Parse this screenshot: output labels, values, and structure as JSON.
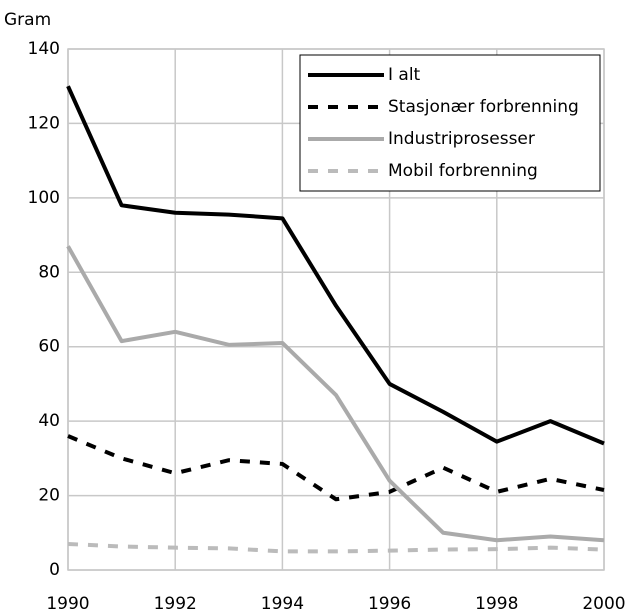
{
  "chart_data": {
    "type": "line",
    "ylabel": "Gram",
    "x": [
      1990,
      1991,
      1992,
      1993,
      1994,
      1995,
      1996,
      1997,
      1998,
      1999,
      2000
    ],
    "xlim": [
      1990,
      2000
    ],
    "xticks": [
      1990,
      1992,
      1994,
      1996,
      1998,
      2000
    ],
    "ylim": [
      0,
      140
    ],
    "yticks": [
      0,
      20,
      40,
      60,
      80,
      100,
      120,
      140
    ],
    "grid": true,
    "legend": "upper right",
    "series": [
      {
        "name": "I alt",
        "color": "#000000",
        "dashed": false,
        "values": [
          130,
          98,
          96,
          95.5,
          94.5,
          71,
          50,
          42.5,
          34.5,
          40,
          34
        ]
      },
      {
        "name": "Stasjonær forbrenning",
        "color": "#000000",
        "dashed": true,
        "values": [
          36,
          30,
          26,
          29.5,
          28.5,
          19,
          21,
          27.5,
          21,
          24.5,
          21.5
        ]
      },
      {
        "name": "Industriprosesser",
        "color": "#aaaaaa",
        "dashed": false,
        "values": [
          87,
          61.5,
          64,
          60.5,
          61,
          47,
          24,
          10,
          8,
          9,
          8
        ]
      },
      {
        "name": "Mobil forbrenning",
        "color": "#bbbbbb",
        "dashed": true,
        "values": [
          7,
          6.3,
          6,
          5.8,
          5,
          5,
          5.2,
          5.5,
          5.6,
          6,
          5.5
        ]
      }
    ]
  }
}
